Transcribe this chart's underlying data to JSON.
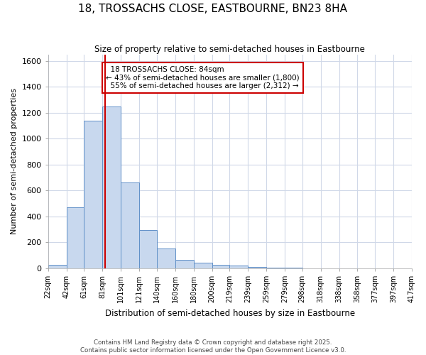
{
  "title": "18, TROSSACHS CLOSE, EASTBOURNE, BN23 8HA",
  "subtitle": "Size of property relative to semi-detached houses in Eastbourne",
  "xlabel": "Distribution of semi-detached houses by size in Eastbourne",
  "ylabel": "Number of semi-detached properties",
  "bar_edges": [
    22,
    42,
    61,
    81,
    101,
    121,
    140,
    160,
    180,
    200,
    219,
    239,
    259,
    279,
    298,
    318,
    338,
    358,
    377,
    397,
    417
  ],
  "bar_heights": [
    25,
    470,
    1140,
    1250,
    660,
    295,
    150,
    65,
    40,
    25,
    18,
    10,
    5,
    2,
    1,
    1,
    1,
    1,
    1,
    1
  ],
  "property_size": 84,
  "property_label": "18 TROSSACHS CLOSE: 84sqm",
  "pct_smaller": 43,
  "pct_larger": 55,
  "count_smaller": 1800,
  "count_larger": 2312,
  "bar_color": "#c8d8ee",
  "bar_edge_color": "#6090c8",
  "line_color": "#cc0000",
  "annotation_box_color": "#cc0000",
  "bg_color": "#ffffff",
  "grid_color": "#d0d8e8",
  "tick_labels": [
    "22sqm",
    "42sqm",
    "61sqm",
    "81sqm",
    "101sqm",
    "121sqm",
    "140sqm",
    "160sqm",
    "180sqm",
    "200sqm",
    "219sqm",
    "239sqm",
    "259sqm",
    "279sqm",
    "298sqm",
    "318sqm",
    "338sqm",
    "358sqm",
    "377sqm",
    "397sqm",
    "417sqm"
  ],
  "ylim": [
    0,
    1650
  ],
  "yticks": [
    0,
    200,
    400,
    600,
    800,
    1000,
    1200,
    1400,
    1600
  ],
  "footer_line1": "Contains HM Land Registry data © Crown copyright and database right 2025.",
  "footer_line2": "Contains public sector information licensed under the Open Government Licence v3.0."
}
